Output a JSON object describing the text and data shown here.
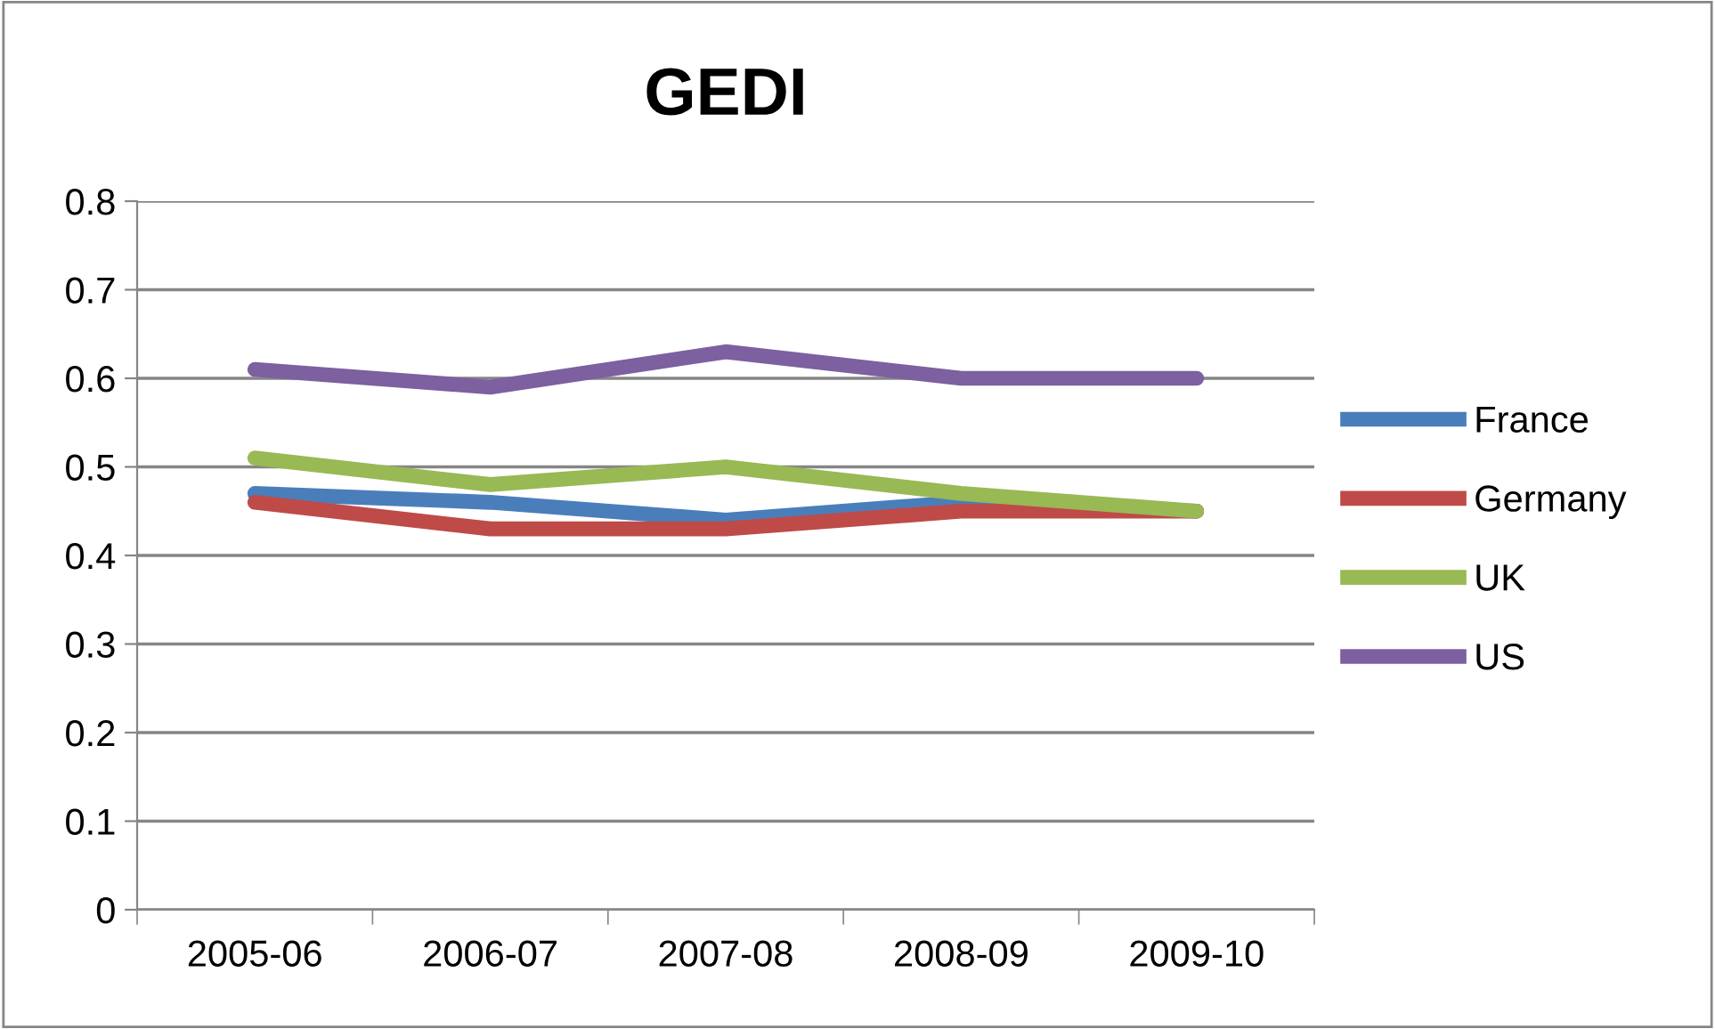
{
  "chart_data": {
    "type": "line",
    "title": "GEDI",
    "categories": [
      "2005-06",
      "2006-07",
      "2007-08",
      "2008-09",
      "2009-10"
    ],
    "series": [
      {
        "name": "France",
        "color": "#4a7ebb",
        "values": [
          0.47,
          0.46,
          0.44,
          0.46,
          0.45
        ]
      },
      {
        "name": "Germany",
        "color": "#be4b48",
        "values": [
          0.46,
          0.43,
          0.43,
          0.45,
          0.45
        ]
      },
      {
        "name": "UK",
        "color": "#98b954",
        "values": [
          0.51,
          0.48,
          0.5,
          0.47,
          0.45
        ]
      },
      {
        "name": "US",
        "color": "#7d60a0",
        "values": [
          0.61,
          0.59,
          0.63,
          0.6,
          0.6
        ]
      }
    ],
    "ylim": [
      0,
      0.8
    ],
    "yticks": [
      0,
      0.1,
      0.2,
      0.3,
      0.4,
      0.5,
      0.6,
      0.7,
      0.8
    ],
    "grid": "y",
    "legend": "right",
    "marker": "none",
    "line_style": "solid"
  }
}
